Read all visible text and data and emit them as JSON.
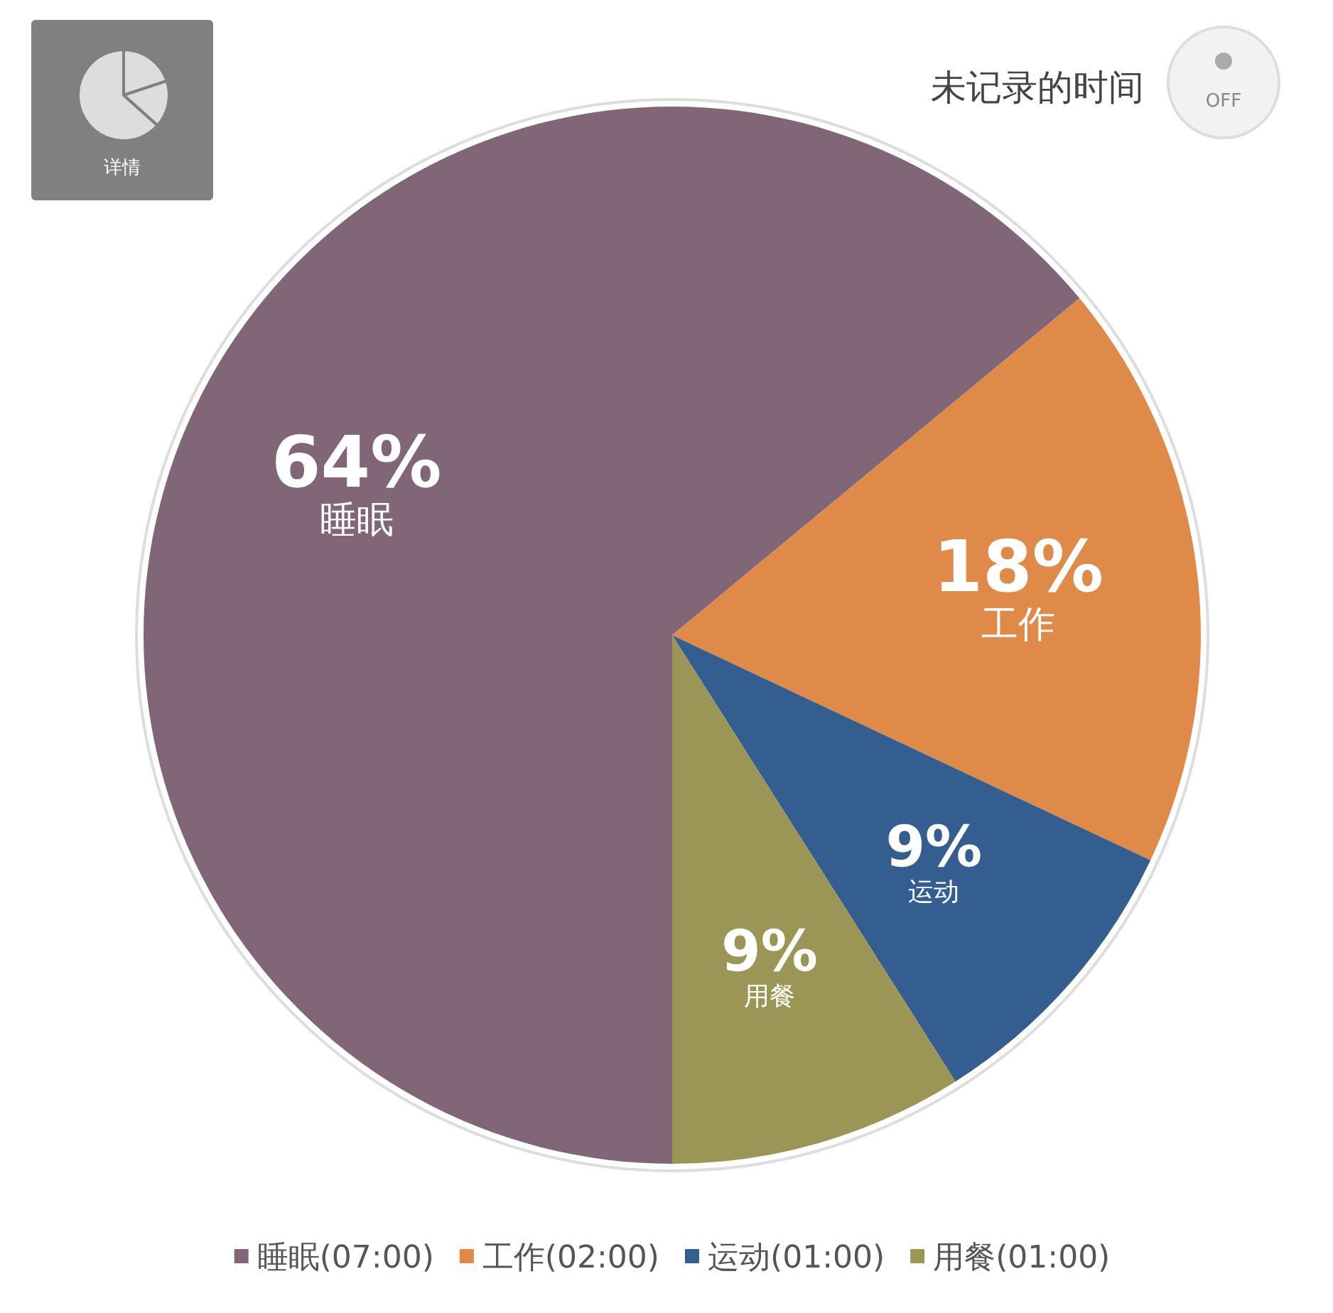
{
  "chart_data": {
    "type": "pie",
    "categories": [
      "睡眠(07:00)",
      "工作(02:00)",
      "运动(01:00)",
      "用餐(01:00)"
    ],
    "values": [
      64,
      18,
      9,
      9
    ],
    "colors": [
      "#806677",
      "#e08a4a",
      "#335e8f",
      "#9b9655"
    ],
    "value_labels": [
      "64%",
      "18%",
      "9%",
      "9%"
    ],
    "legend": "bottom",
    "annotations": [
      {
        "text": "睡眠",
        "x": "睡眠(07:00)"
      },
      {
        "text": "工作",
        "x": "工作(02:00)"
      },
      {
        "text": "运动",
        "x": "运动(01:00)"
      },
      {
        "text": "用餐",
        "x": "用餐(01:00)"
      },
      "详情",
      "未记录的时间",
      "OFF"
    ]
  }
}
